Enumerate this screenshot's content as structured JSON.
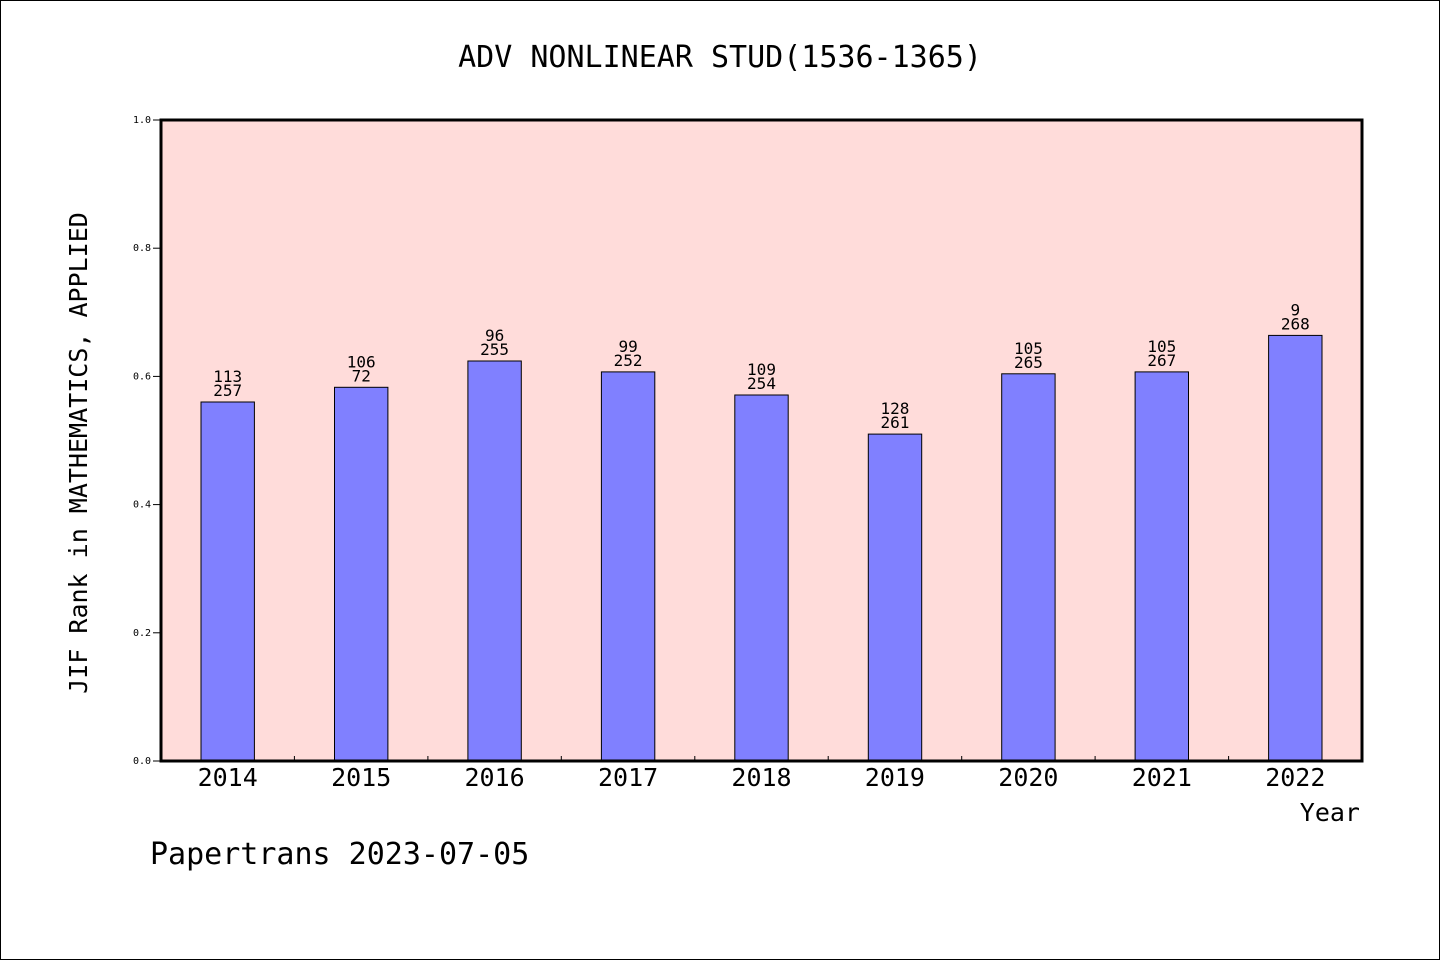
{
  "chart_data": {
    "type": "bar",
    "title": "ADV NONLINEAR STUD(1536-1365)",
    "ylabel": "JIF Rank in MATHEMATICS, APPLIED",
    "xlabel": "Year",
    "categories": [
      "2014",
      "2015",
      "2016",
      "2017",
      "2018",
      "2019",
      "2020",
      "2021",
      "2022"
    ],
    "values": [
      0.56,
      0.583,
      0.624,
      0.607,
      0.571,
      0.51,
      0.604,
      0.607,
      0.664
    ],
    "rank_labels": [
      {
        "rank": "113",
        "total": "257"
      },
      {
        "rank": "106",
        "total": "72"
      },
      {
        "rank": "96",
        "total": "255"
      },
      {
        "rank": "99",
        "total": "252"
      },
      {
        "rank": "109",
        "total": "254"
      },
      {
        "rank": "128",
        "total": "261"
      },
      {
        "rank": "105",
        "total": "265"
      },
      {
        "rank": "105",
        "total": "267"
      },
      {
        "rank": "9",
        "total": "268"
      }
    ],
    "ylim": [
      0,
      1.0
    ],
    "yticks": [
      "0.0",
      "0.2",
      "0.4",
      "0.6",
      "0.8",
      "1.0"
    ],
    "grid": false,
    "colors": {
      "plot_background": "#FFDCDA",
      "bar_fill": "#8080FF",
      "bar_stroke": "#000000"
    }
  },
  "footer": {
    "text": "Papertrans 2023-07-05"
  }
}
